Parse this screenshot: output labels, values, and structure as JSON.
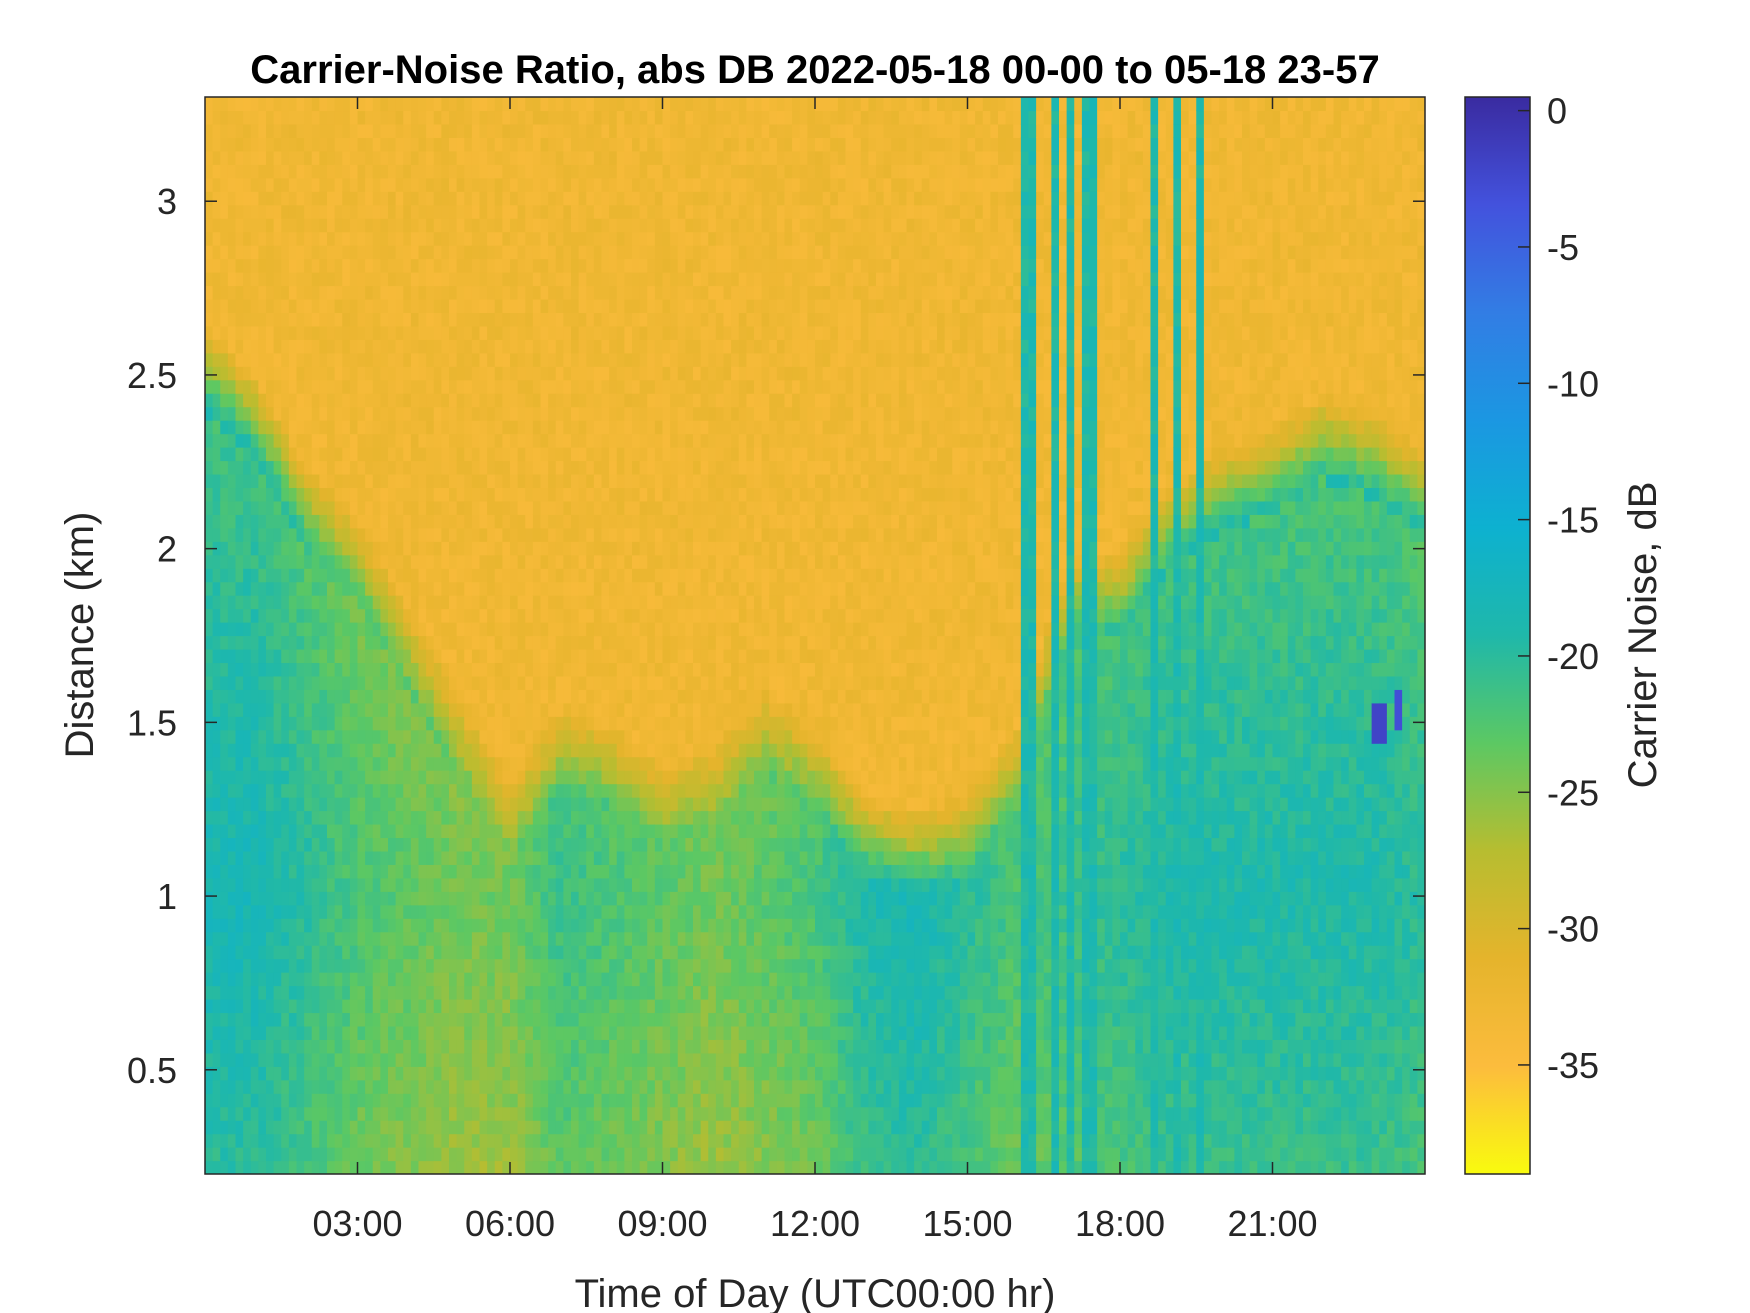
{
  "chart_data": {
    "type": "heatmap",
    "title": "Carrier-Noise Ratio, abs DB 2022-05-18 00-00 to 05-18 23-57",
    "xlabel": "Time of Day (UTC00:00 hr)",
    "ylabel": "Distance (km)",
    "colorbar_label": "Carrier Noise, dB",
    "x_unit": "hours UTC",
    "xlim": [
      0,
      24
    ],
    "ylim": [
      0.2,
      3.3
    ],
    "clim": [
      -39,
      0.5
    ],
    "x_ticks": [
      3,
      6,
      9,
      12,
      15,
      18,
      21
    ],
    "x_tick_labels": [
      "03:00",
      "06:00",
      "09:00",
      "12:00",
      "15:00",
      "18:00",
      "21:00"
    ],
    "y_ticks": [
      0.5,
      1,
      1.5,
      2,
      2.5,
      3
    ],
    "y_tick_labels": [
      "0.5",
      "1",
      "1.5",
      "2",
      "2.5",
      "3"
    ],
    "colorbar_ticks": [
      0,
      -5,
      -10,
      -15,
      -20,
      -25,
      -30,
      -35
    ],
    "colorbar_tick_labels": [
      "0",
      "-5",
      "-10",
      "-15",
      "-20",
      "-25",
      "-30",
      "-35"
    ],
    "colormap": "parula",
    "colormap_stops": [
      "#f9fb0e",
      "#fcbc3d",
      "#e5b42c",
      "#b7bd30",
      "#5cc863",
      "#1fb8aa",
      "#0db1d0",
      "#1b97e2",
      "#327de4",
      "#4352dd",
      "#3a2ba0"
    ],
    "time_hours": [
      0,
      1,
      2,
      3,
      4,
      5,
      6,
      7,
      8,
      9,
      10,
      11,
      12,
      13,
      14,
      15,
      16,
      17,
      18,
      19,
      20,
      21,
      22,
      23,
      24
    ],
    "noise_floor_db": -33,
    "aerosol_layer_top_km": [
      2.65,
      2.5,
      2.25,
      2.1,
      1.85,
      1.6,
      1.35,
      1.55,
      1.5,
      1.4,
      1.45,
      1.6,
      1.5,
      1.3,
      1.25,
      1.3,
      1.5,
      2.0,
      2.0,
      2.2,
      2.3,
      2.35,
      2.45,
      2.4,
      2.3
    ],
    "layer_core_db": [
      -18,
      -18,
      -20,
      -22,
      -23,
      -24,
      -24,
      -21,
      -22,
      -23,
      -24,
      -23,
      -22,
      -19,
      -18,
      -20,
      -22,
      -21,
      -20,
      -19,
      -19,
      -19,
      -19,
      -19,
      -20
    ],
    "vertical_streaks_hours": [
      16.2,
      16.7,
      17.0,
      17.4,
      18.7,
      19.1,
      19.6
    ],
    "low_cnr_patches": [
      {
        "time_hour": 23.1,
        "distance_km": 1.5,
        "db": -2
      },
      {
        "time_hour": 23.5,
        "distance_km": 1.52,
        "db": -3
      }
    ]
  }
}
